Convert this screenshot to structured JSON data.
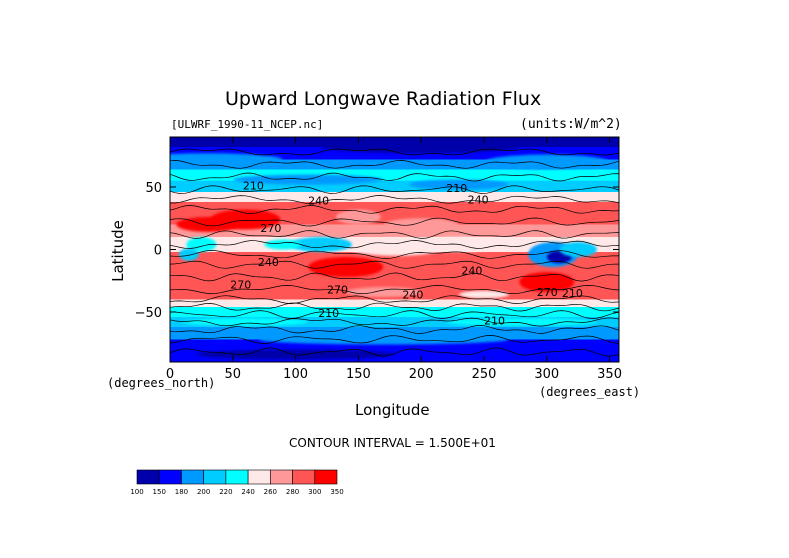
{
  "chart_data": {
    "type": "heatmap",
    "title": "Upward Longwave Radiation Flux",
    "source_label": "[ULWRF_1990-11_NCEP.nc]",
    "units_label": "(units:W/m^2)",
    "xlabel": "Longitude",
    "ylabel": "Latitude",
    "x_unit_label": "(degrees_east)",
    "y_unit_label": "(degrees_north)",
    "xlim": [
      0,
      357.5
    ],
    "ylim": [
      -90,
      90
    ],
    "x_ticks": [
      0,
      50,
      100,
      150,
      200,
      250,
      300,
      350
    ],
    "y_ticks": [
      -50,
      0,
      50
    ],
    "contour_interval_text": "CONTOUR INTERVAL = 1.500E+01",
    "contour_interval": 15,
    "colorbar": {
      "levels": [
        100,
        150,
        180,
        200,
        220,
        240,
        260,
        280,
        300,
        350
      ],
      "colors": [
        "#0000aa",
        "#0000ff",
        "#0099ff",
        "#00ccff",
        "#00ffff",
        "#ffe8e8",
        "#ff9999",
        "#ff5555",
        "#ff0000"
      ]
    },
    "contour_labels": [
      {
        "text": "210",
        "lon": 58,
        "lat": 48
      },
      {
        "text": "240",
        "lon": 110,
        "lat": 36
      },
      {
        "text": "270",
        "lon": 72,
        "lat": 14
      },
      {
        "text": "240",
        "lon": 70,
        "lat": -13
      },
      {
        "text": "270",
        "lon": 48,
        "lat": -31
      },
      {
        "text": "270",
        "lon": 125,
        "lat": -35
      },
      {
        "text": "240",
        "lon": 185,
        "lat": -39
      },
      {
        "text": "240",
        "lon": 232,
        "lat": -20
      },
      {
        "text": "210",
        "lon": 220,
        "lat": 46
      },
      {
        "text": "240",
        "lon": 237,
        "lat": 37
      },
      {
        "text": "210",
        "lon": 118,
        "lat": -54
      },
      {
        "text": "210",
        "lon": 250,
        "lat": -60
      },
      {
        "text": "270",
        "lon": 292,
        "lat": -37
      },
      {
        "text": "210",
        "lon": 312,
        "lat": -38
      }
    ]
  }
}
